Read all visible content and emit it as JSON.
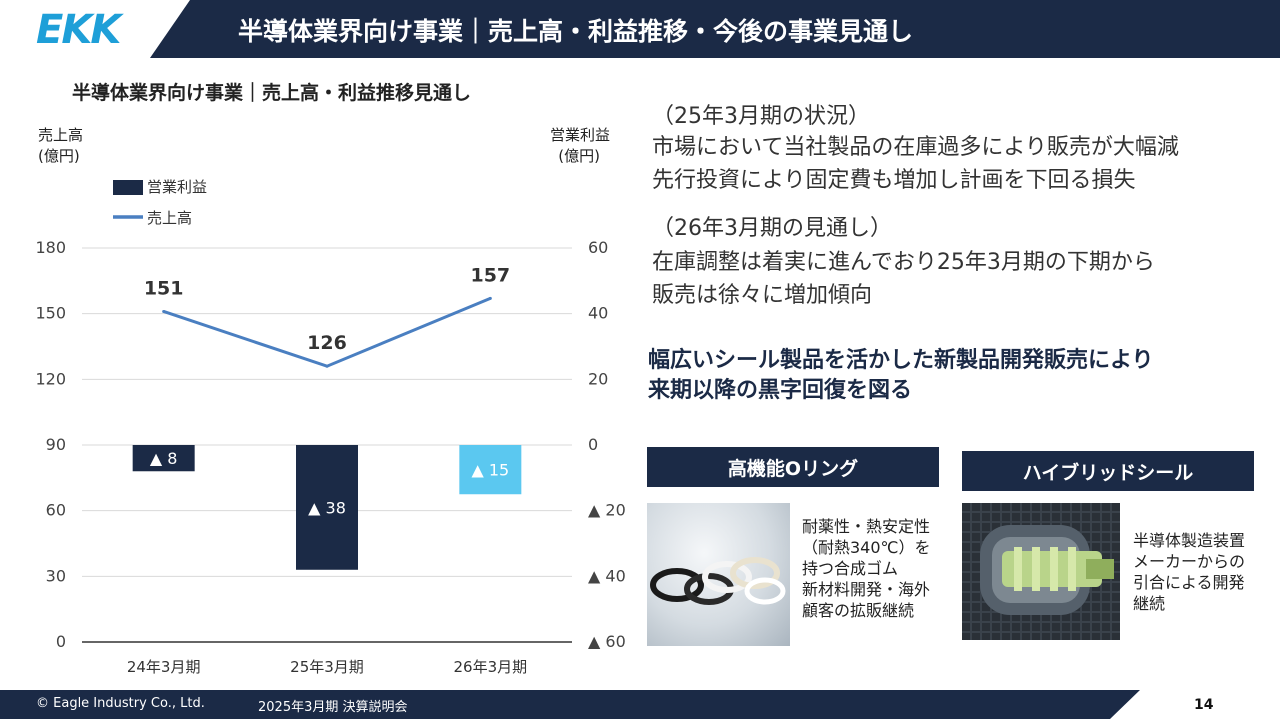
{
  "header": {
    "logo_text": "EKK",
    "title": "半導体業界向け事業｜売上高・利益推移・今後の事業見通し"
  },
  "chart": {
    "title": "半導体業界向け事業｜売上高・利益推移見通し"
  },
  "chart_data": {
    "type": "bar+line",
    "categories": [
      "24年3月期",
      "25年3月期",
      "26年3月期"
    ],
    "left_axis": {
      "label_line1": "売上高",
      "label_line2": "(億円)",
      "range": [
        0,
        180
      ],
      "ticks": [
        "0",
        "30",
        "60",
        "90",
        "120",
        "150",
        "180"
      ]
    },
    "right_axis": {
      "label_line1": "営業利益",
      "label_line2": "(億円)",
      "range": [
        -60,
        60
      ],
      "ticks": [
        "▲ 60",
        "▲ 40",
        "▲ 20",
        "0",
        "20",
        "40",
        "60"
      ]
    },
    "series": [
      {
        "name": "営業利益",
        "type": "bar",
        "axis": "right",
        "values": [
          -8,
          -38,
          -15
        ],
        "labels": [
          "▲ 8",
          "▲ 38",
          "▲ 15"
        ],
        "colors": [
          "#1b2a46",
          "#1b2a46",
          "#5bc8f0"
        ]
      },
      {
        "name": "売上高",
        "type": "line",
        "axis": "left",
        "values": [
          151,
          126,
          157
        ],
        "labels": [
          "151",
          "126",
          "157"
        ],
        "color": "#4a7fc1"
      }
    ],
    "legend": [
      "営業利益",
      "売上高"
    ],
    "legend_position": "top-left"
  },
  "status": {
    "heading1": "（25年3月期の状況）",
    "line1": "市場において当社製品の在庫過多により販売が大幅減",
    "line2": "先行投資により固定費も増加し計画を下回る損失",
    "heading2": "（26年3月期の見通し）",
    "line3": "在庫調整は着実に進んでおり25年3月期の下期から",
    "line4": "販売は徐々に増加傾向"
  },
  "strategy": {
    "line1": "幅広いシール製品を活かした新製品開発販売により",
    "line2": "来期以降の黒字回復を図る"
  },
  "products": [
    {
      "label": "高機能Oリング",
      "caption": [
        "耐薬性・熱安定性",
        "（耐熱340℃）を",
        "持つ合成ゴム",
        "新材料開発・海外",
        "顧客の拡販継続"
      ]
    },
    {
      "label": "ハイブリッドシール",
      "caption": [
        "半導体製造装置",
        "メーカーからの",
        "引合による開発",
        "継続"
      ]
    }
  ],
  "footer": {
    "copyright": "© Eagle Industry Co., Ltd.",
    "event": "2025年3月期 決算説明会",
    "page": "14"
  }
}
